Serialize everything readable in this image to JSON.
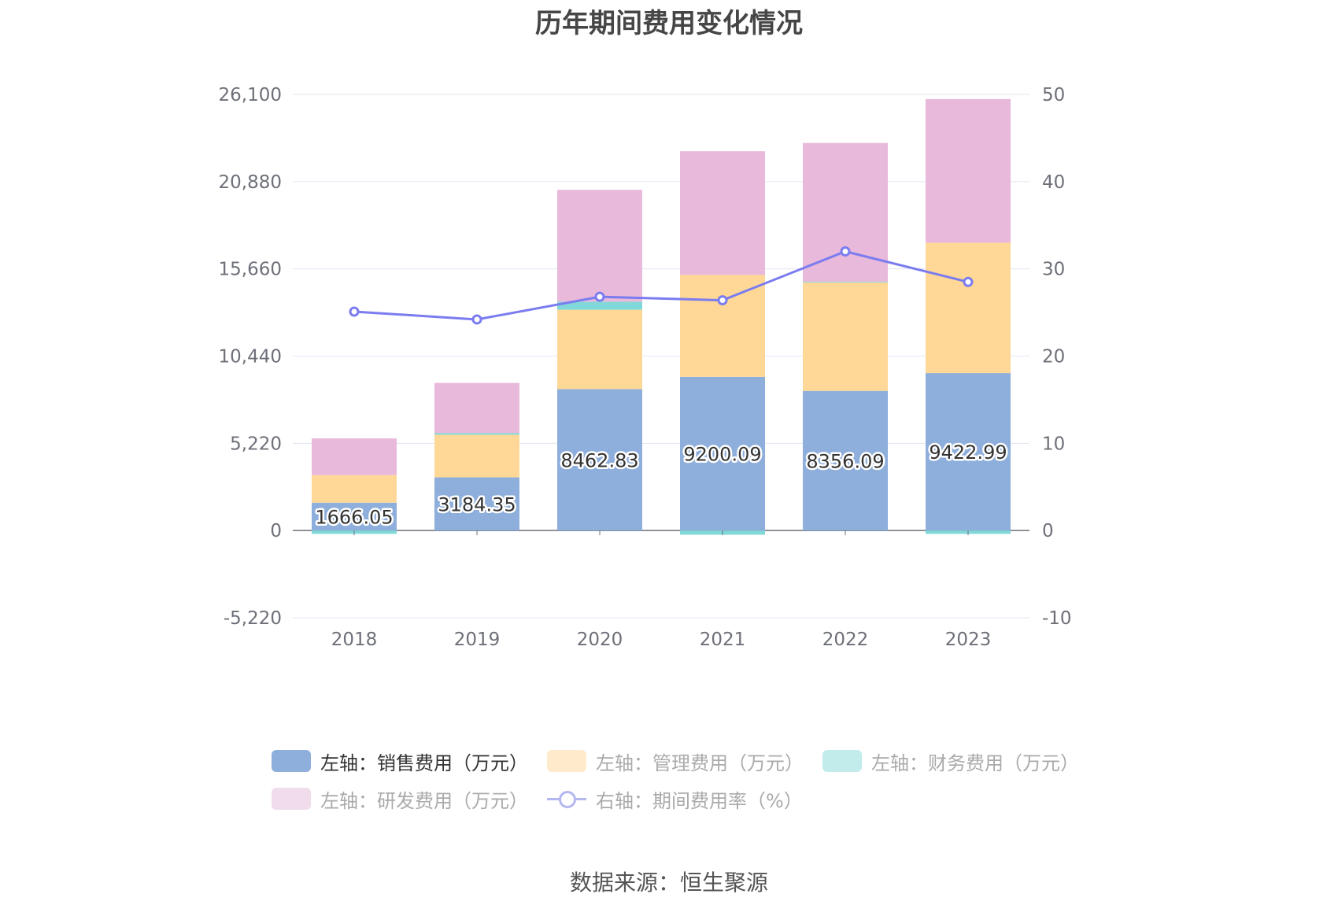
{
  "title": "历年期间费用变化情况",
  "source": "数据来源：恒生聚源",
  "legend": [
    {
      "label": "左轴：销售费用（万元）",
      "color": "#8eaedb",
      "kind": "bar",
      "active": true
    },
    {
      "label": "左轴：管理费用（万元）",
      "color": "#ffeacb",
      "kind": "bar",
      "active": false
    },
    {
      "label": "左轴：财务费用（万元）",
      "color": "#c2ebeb",
      "kind": "bar",
      "active": false
    },
    {
      "label": "左轴：研发费用（万元）",
      "color": "#f1dcec",
      "kind": "bar",
      "active": false
    },
    {
      "label": "右轴：期间费用率（%）",
      "color": "#b4b7f0",
      "kind": "line",
      "active": false
    }
  ],
  "chart_data": {
    "type": "bar",
    "stacked": true,
    "categories": [
      "2018",
      "2019",
      "2020",
      "2021",
      "2022",
      "2023"
    ],
    "left_axis": {
      "min": -5220,
      "max": 26100,
      "ticks": [
        "-5,220",
        "0",
        "5,220",
        "10,440",
        "15,660",
        "20,880",
        "26,100"
      ]
    },
    "right_axis": {
      "min": -10,
      "max": 50,
      "ticks": [
        "-10",
        "0",
        "10",
        "20",
        "30",
        "40",
        "50"
      ]
    },
    "series": [
      {
        "name": "左轴：销售费用（万元）",
        "axis": "left",
        "color": "#8eaedb",
        "values": [
          1666.05,
          3184.35,
          8462.83,
          9200.09,
          8356.09,
          9422.99
        ],
        "labels": [
          "1666.05",
          "3184.35",
          "8462.83",
          "9200.09",
          "8356.09",
          "9422.99"
        ]
      },
      {
        "name": "左轴：管理费用（万元）",
        "axis": "left",
        "color": "#ffd897",
        "values": [
          1650,
          2550,
          4750,
          6100,
          6500,
          7800
        ]
      },
      {
        "name": "左轴：财务费用（万元）",
        "axis": "left",
        "color": "#80d8d8",
        "values": [
          -200,
          100,
          480,
          -250,
          40,
          -200
        ]
      },
      {
        "name": "左轴：研发费用（万元）",
        "axis": "left",
        "color": "#e8b9da",
        "values": [
          2200,
          3000,
          6700,
          7400,
          8300,
          8600
        ]
      },
      {
        "name": "右轴：期间费用率（%）",
        "axis": "right",
        "type": "line",
        "color": "#7b7cef",
        "values": [
          25.1,
          24.2,
          26.8,
          26.4,
          32.0,
          28.5
        ]
      }
    ]
  }
}
